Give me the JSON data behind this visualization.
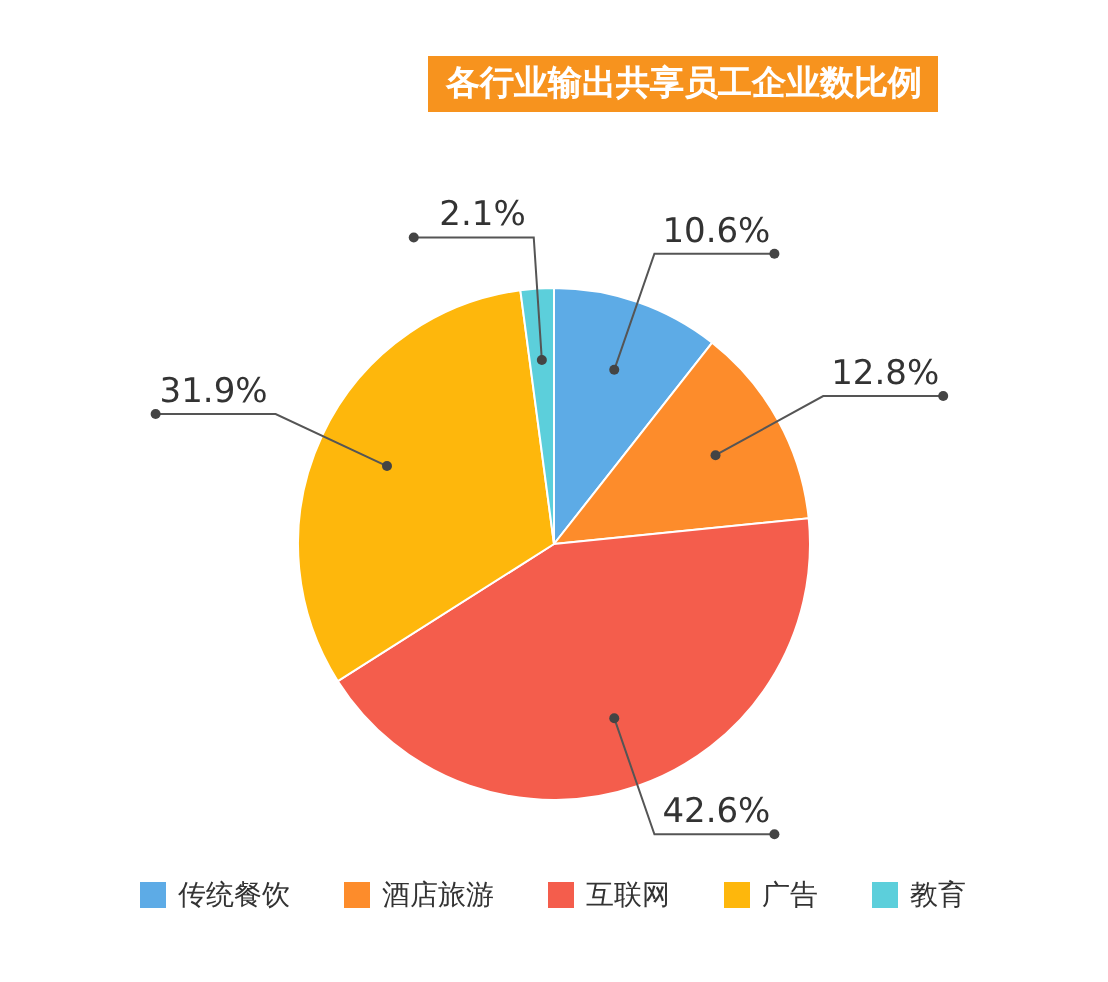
{
  "chart_data": {
    "type": "pie",
    "title": "各行业输出共享员工企业数比例",
    "categories": [
      "传统餐饮",
      "酒店旅游",
      "互联网",
      "广告",
      "教育"
    ],
    "values": [
      10.6,
      12.8,
      42.6,
      31.9,
      2.1
    ],
    "colors": [
      "#5dabe6",
      "#fd8c2b",
      "#f45d4c",
      "#feb70c",
      "#5ccfdb"
    ],
    "value_labels": [
      "10.6%",
      "12.8%",
      "42.6%",
      "31.9%",
      "2.1%"
    ],
    "legend": "bottom"
  }
}
